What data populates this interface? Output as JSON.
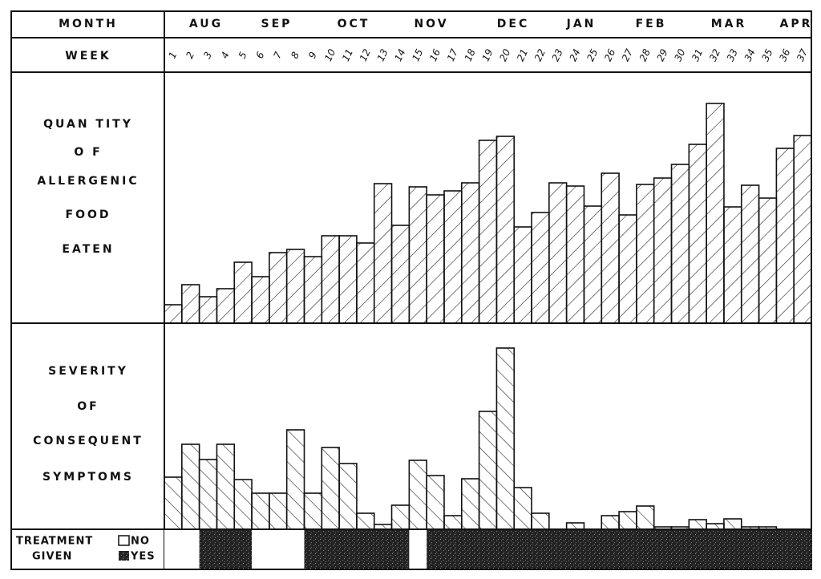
{
  "chart_data": {
    "type": "bar",
    "month_label": "MONTH",
    "week_label": "WEEK",
    "months": [
      "AUG",
      "SEP",
      "OCT",
      "NOV",
      "DEC",
      "JAN",
      "FEB",
      "MAR",
      "APR"
    ],
    "categories": [
      1,
      2,
      3,
      4,
      5,
      6,
      7,
      8,
      9,
      10,
      11,
      12,
      13,
      14,
      15,
      16,
      17,
      18,
      19,
      20,
      21,
      22,
      23,
      24,
      25,
      26,
      27,
      28,
      29,
      30,
      31,
      32,
      33,
      34,
      35,
      36,
      37
    ],
    "series": [
      {
        "name": [
          "QUAN TITY",
          "O F",
          "ALLERGENIC",
          "FOOD",
          "EATEN"
        ],
        "values": [
          23,
          48,
          33,
          43,
          76,
          58,
          88,
          92,
          83,
          109,
          109,
          100,
          174,
          122,
          170,
          160,
          165,
          175,
          228,
          233,
          120,
          138,
          175,
          171,
          146,
          187,
          135,
          173,
          181,
          198,
          223,
          274,
          145,
          172,
          156,
          218,
          234
        ]
      },
      {
        "name": [
          "SEVERITY",
          "OF",
          "CONSEQUENT",
          "SYMPTOMS"
        ],
        "values": [
          65,
          106,
          87,
          106,
          62,
          45,
          45,
          124,
          45,
          102,
          82,
          20,
          6,
          30,
          86,
          67,
          17,
          63,
          147,
          226,
          52,
          20,
          0,
          8,
          0,
          17,
          22,
          29,
          3,
          3,
          12,
          7,
          13,
          3,
          3,
          0,
          0
        ]
      }
    ],
    "treatment_label": [
      "TREATMENT",
      "GIVEN"
    ],
    "treatment_legend": [
      "NO",
      "YES"
    ],
    "treatment": [
      0,
      0,
      1,
      1,
      1,
      0,
      0,
      0,
      1,
      1,
      1,
      1,
      1,
      1,
      0,
      1,
      1,
      1,
      1,
      1,
      1,
      1,
      1,
      1,
      1,
      1,
      1,
      1,
      1,
      1,
      1,
      1,
      1,
      1,
      1,
      1,
      1
    ]
  }
}
